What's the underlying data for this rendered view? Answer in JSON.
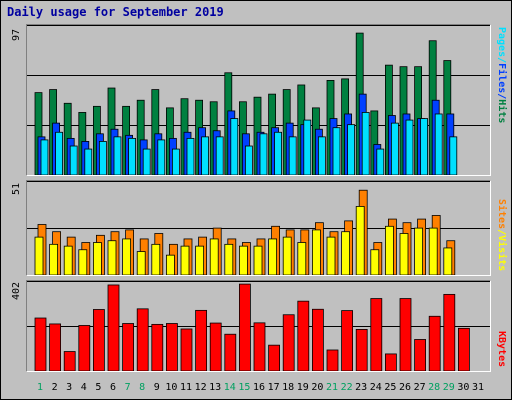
{
  "title": "Daily usage for September 2019",
  "colors": {
    "hits": "#008040",
    "files": "#0040ff",
    "pages": "#00e0ff",
    "visits": "#ff8000",
    "sites": "#ffff00",
    "kbytes": "#ff0000",
    "background": "#c0c0c0",
    "grid": "#000000",
    "weekend": "#00a060",
    "title": "#0000a0"
  },
  "right_labels": {
    "hits_group": [
      {
        "text": "Pages",
        "color": "#00e0ff"
      },
      {
        "text": "/",
        "color": "#00e0ff"
      },
      {
        "text": "Files",
        "color": "#0040ff"
      },
      {
        "text": "/",
        "color": "#0040ff"
      },
      {
        "text": "Hits",
        "color": "#008040"
      }
    ],
    "sites_group": [
      {
        "text": "Sites",
        "color": "#ff8000"
      },
      {
        "text": "/",
        "color": "#ffff00"
      },
      {
        "text": "Visits",
        "color": "#ffff00"
      }
    ],
    "kbytes_group": [
      {
        "text": "KBytes",
        "color": "#ff0000"
      }
    ]
  },
  "chart_data": [
    {
      "type": "bar",
      "panel": "hits-files-pages",
      "y_max_label": "97",
      "ylim": [
        0,
        97
      ],
      "grid": true,
      "categories": [
        "1",
        "2",
        "3",
        "4",
        "5",
        "6",
        "7",
        "8",
        "9",
        "10",
        "11",
        "12",
        "13",
        "14",
        "15",
        "16",
        "17",
        "18",
        "19",
        "20",
        "21",
        "22",
        "23",
        "24",
        "25",
        "26",
        "27",
        "28",
        "29",
        "30",
        "31"
      ],
      "weekend_days": [
        "1",
        "7",
        "8",
        "14",
        "15",
        "21",
        "22",
        "28",
        "29"
      ],
      "series": [
        {
          "name": "Hits",
          "values": [
            54,
            56,
            47,
            41,
            45,
            57,
            45,
            49,
            56,
            44,
            50,
            49,
            48,
            67,
            48,
            51,
            53,
            56,
            59,
            44,
            62,
            63,
            93,
            42,
            72,
            71,
            71,
            88,
            75,
            0,
            0
          ]
        },
        {
          "name": "Files",
          "values": [
            25,
            34,
            24,
            22,
            27,
            30,
            26,
            23,
            27,
            24,
            28,
            31,
            29,
            42,
            27,
            28,
            31,
            34,
            33,
            30,
            37,
            40,
            53,
            20,
            39,
            40,
            37,
            49,
            40,
            0,
            0
          ]
        },
        {
          "name": "Pages",
          "values": [
            23,
            28,
            19,
            17,
            22,
            25,
            24,
            17,
            23,
            17,
            24,
            25,
            25,
            37,
            19,
            27,
            28,
            25,
            36,
            25,
            31,
            33,
            41,
            17,
            34,
            36,
            37,
            40,
            25,
            0,
            0
          ]
        }
      ]
    },
    {
      "type": "bar",
      "panel": "sites-visits",
      "y_max_label": "51",
      "ylim": [
        0,
        51
      ],
      "grid": true,
      "categories": [
        "1",
        "2",
        "3",
        "4",
        "5",
        "6",
        "7",
        "8",
        "9",
        "10",
        "11",
        "12",
        "13",
        "14",
        "15",
        "16",
        "17",
        "18",
        "19",
        "20",
        "21",
        "22",
        "23",
        "24",
        "25",
        "26",
        "27",
        "28",
        "29",
        "30",
        "31"
      ],
      "series": [
        {
          "name": "Visits",
          "values": [
            28,
            24,
            21,
            18,
            22,
            24,
            25,
            20,
            23,
            17,
            20,
            21,
            26,
            20,
            18,
            20,
            27,
            25,
            25,
            29,
            24,
            30,
            47,
            18,
            31,
            29,
            31,
            33,
            19,
            0,
            0
          ]
        },
        {
          "name": "Sites",
          "values": [
            21,
            17,
            16,
            14,
            18,
            19,
            20,
            13,
            17,
            11,
            16,
            16,
            20,
            17,
            16,
            16,
            20,
            21,
            18,
            25,
            21,
            24,
            38,
            14,
            27,
            23,
            26,
            26,
            15,
            0,
            0
          ]
        }
      ]
    },
    {
      "type": "bar",
      "panel": "kbytes",
      "y_max_label": "402",
      "ylim": [
        0,
        402
      ],
      "grid": true,
      "categories": [
        "1",
        "2",
        "3",
        "4",
        "5",
        "6",
        "7",
        "8",
        "9",
        "10",
        "11",
        "12",
        "13",
        "14",
        "15",
        "16",
        "17",
        "18",
        "19",
        "20",
        "21",
        "22",
        "23",
        "24",
        "25",
        "26",
        "27",
        "28",
        "29",
        "30",
        "31"
      ],
      "series": [
        {
          "name": "KBytes",
          "values": [
            242,
            215,
            89,
            208,
            281,
            393,
            217,
            284,
            213,
            217,
            192,
            277,
            219,
            168,
            397,
            220,
            118,
            257,
            319,
            282,
            96,
            276,
            190,
            331,
            78,
            331,
            144,
            250,
            350,
            195,
            0
          ]
        }
      ]
    }
  ]
}
